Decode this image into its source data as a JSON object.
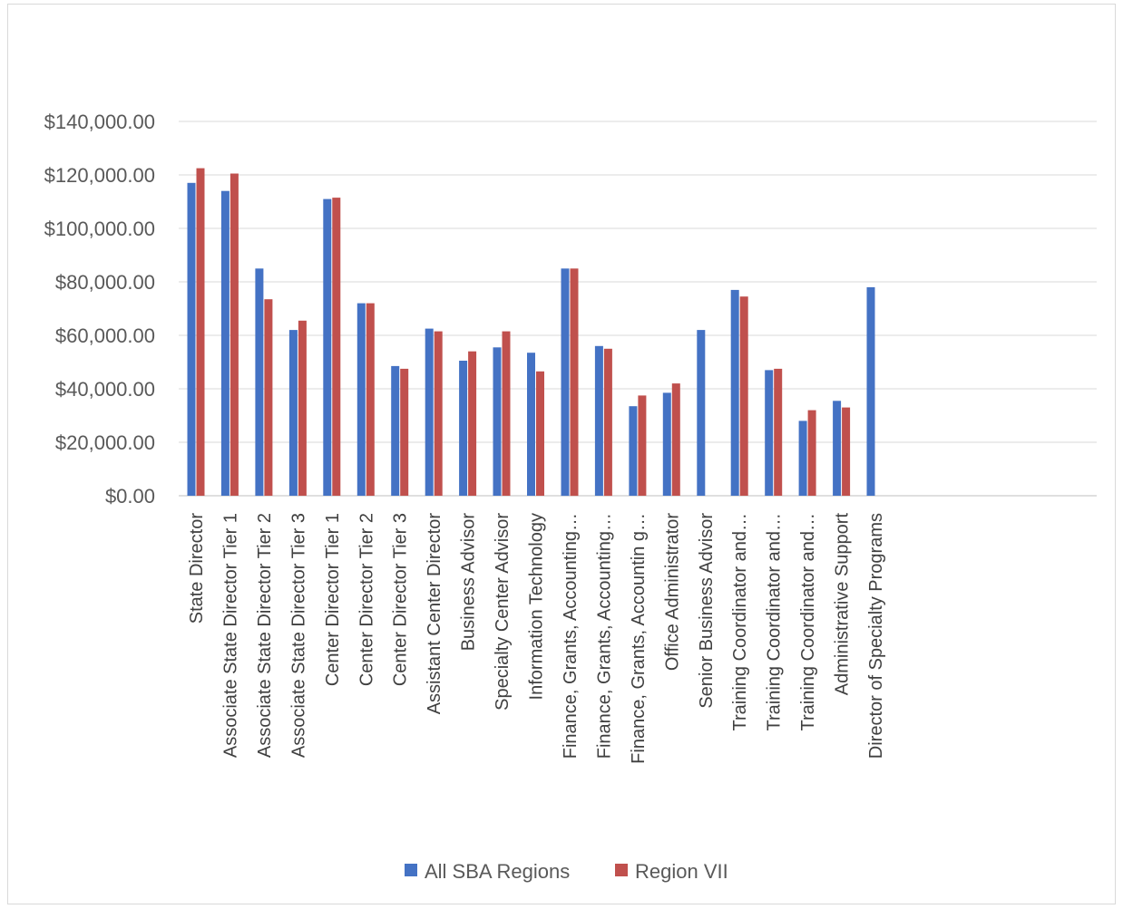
{
  "chart_data": {
    "type": "bar",
    "title": "",
    "xlabel": "",
    "ylabel": "",
    "ylim": [
      0,
      140000
    ],
    "y_ticks": [
      0,
      20000,
      40000,
      60000,
      80000,
      100000,
      120000,
      140000
    ],
    "y_tick_labels": [
      "$0.00",
      "$20,000.00",
      "$40,000.00",
      "$60,000.00",
      "$80,000.00",
      "$100,000.00",
      "$120,000.00",
      "$140,000.00"
    ],
    "grid": true,
    "legend_position": "bottom",
    "categories": [
      "State Director",
      "Associate State Director Tier 1",
      "Associate State Director Tier 2",
      "Associate State Director Tier 3",
      "Center Director Tier 1",
      "Center Director Tier 2",
      "Center Director Tier 3",
      "Assistant Center Director",
      "Business Advisor",
      "Specialty Center Advisor",
      "Information Technology",
      "Finance, Grants, Accounting…",
      "Finance, Grants, Accounting…",
      "Finance, Grants, Accountin g…",
      "Office Administrator",
      "Senior Business Advisor",
      "Training Coordinator and…",
      "Training Coordinator and…",
      "Training Coordinator and…",
      "Administrative Support",
      "Director of Specialty Programs"
    ],
    "series": [
      {
        "name": "All SBA Regions",
        "color": "#4472c4",
        "values": [
          117000,
          114000,
          85000,
          62000,
          111000,
          72000,
          48500,
          62500,
          50500,
          55500,
          53500,
          85000,
          56000,
          33500,
          38500,
          62000,
          77000,
          47000,
          28000,
          35500,
          78000
        ]
      },
      {
        "name": "Region VII",
        "color": "#c0504d",
        "values": [
          122500,
          120500,
          73500,
          65500,
          111500,
          72000,
          47500,
          61500,
          54000,
          61500,
          46500,
          85000,
          55000,
          37500,
          42000,
          null,
          74500,
          47500,
          32000,
          33000,
          null
        ]
      }
    ]
  }
}
